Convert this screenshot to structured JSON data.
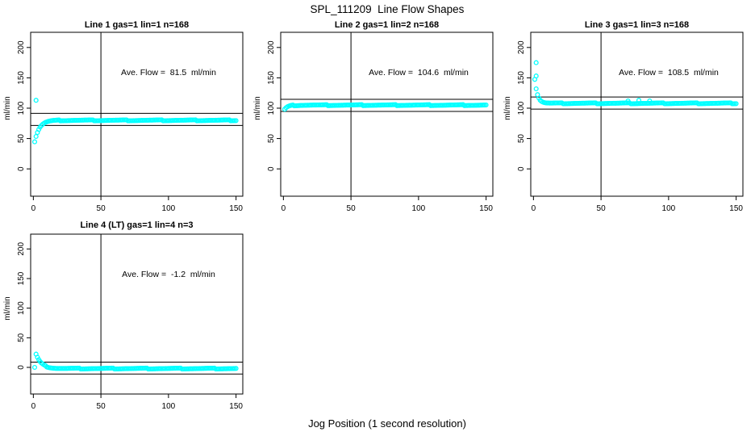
{
  "title": "SPL_111209  Line Flow Shapes",
  "xlabel": "Jog Position (1 second resolution)",
  "colors": {
    "points": "#00FFFF",
    "lines": "#000000",
    "text": "#000000",
    "background": "#FFFFFF"
  },
  "chart_data": [
    {
      "type": "scatter",
      "title": "Line 1 gas=1 lin=1 n=168",
      "annotation": "Ave. Flow =  81.5  ml/min",
      "ave_flow_ml_min": 81.5,
      "ylabel": "ml/min",
      "xlim": [
        -2,
        155
      ],
      "ylim": [
        -45,
        225
      ],
      "xticks": [
        0,
        50,
        100,
        150
      ],
      "yticks": [
        0,
        50,
        100,
        150,
        200
      ],
      "vline_x": 50,
      "hlines": [
        91.5,
        71.5
      ],
      "series": {
        "name": "flow",
        "x_start": 1,
        "x_end": 150,
        "plateau": 80,
        "amplitude": -35,
        "tau": 3.5,
        "jitter": 0.8,
        "outliers": [
          [
            2,
            113
          ]
        ]
      }
    },
    {
      "type": "scatter",
      "title": "Line 2 gas=1 lin=2 n=168",
      "annotation": "Ave. Flow =  104.6  ml/min",
      "ave_flow_ml_min": 104.6,
      "ylabel": "ml/min",
      "xlim": [
        -2,
        155
      ],
      "ylim": [
        -45,
        225
      ],
      "xticks": [
        0,
        50,
        100,
        150
      ],
      "yticks": [
        0,
        50,
        100,
        150,
        200
      ],
      "vline_x": 50,
      "hlines": [
        114.6,
        94.6
      ],
      "series": {
        "name": "flow",
        "x_start": 1,
        "x_end": 150,
        "plateau": 105,
        "amplitude": -7,
        "tau": 2.5,
        "jitter": 0.8,
        "outliers": []
      }
    },
    {
      "type": "scatter",
      "title": "Line 3 gas=1 lin=3 n=168",
      "annotation": "Ave. Flow =  108.5  ml/min",
      "ave_flow_ml_min": 108.5,
      "ylabel": "ml/min",
      "xlim": [
        -2,
        155
      ],
      "ylim": [
        -45,
        225
      ],
      "xticks": [
        0,
        50,
        100,
        150
      ],
      "yticks": [
        0,
        50,
        100,
        150,
        200
      ],
      "vline_x": 50,
      "hlines": [
        118.5,
        98.5
      ],
      "series": {
        "name": "flow",
        "x_start": 1,
        "x_end": 150,
        "plateau": 108,
        "amplitude": 40,
        "tau": 2,
        "jitter": 0.8,
        "outliers": [
          [
            2,
            175
          ],
          [
            2,
            153
          ],
          [
            70,
            112
          ],
          [
            78,
            113
          ],
          [
            86,
            112
          ]
        ]
      }
    },
    {
      "type": "scatter",
      "title": "Line 4 (LT) gas=1 lin=4 n=3",
      "annotation": "Ave. Flow =  -1.2  ml/min",
      "ave_flow_ml_min": -1.2,
      "ylabel": "ml/min",
      "xlim": [
        -2,
        155
      ],
      "ylim": [
        -45,
        225
      ],
      "xticks": [
        0,
        50,
        100,
        150
      ],
      "yticks": [
        0,
        50,
        100,
        150,
        200
      ],
      "vline_x": 50,
      "hlines": [
        8.8,
        -11.2
      ],
      "series": {
        "name": "flow",
        "x_start": 2,
        "x_end": 150,
        "plateau": -2,
        "amplitude": 24,
        "tau": 4,
        "jitter": 0.8,
        "outliers": [
          [
            1,
            0
          ]
        ]
      }
    }
  ]
}
